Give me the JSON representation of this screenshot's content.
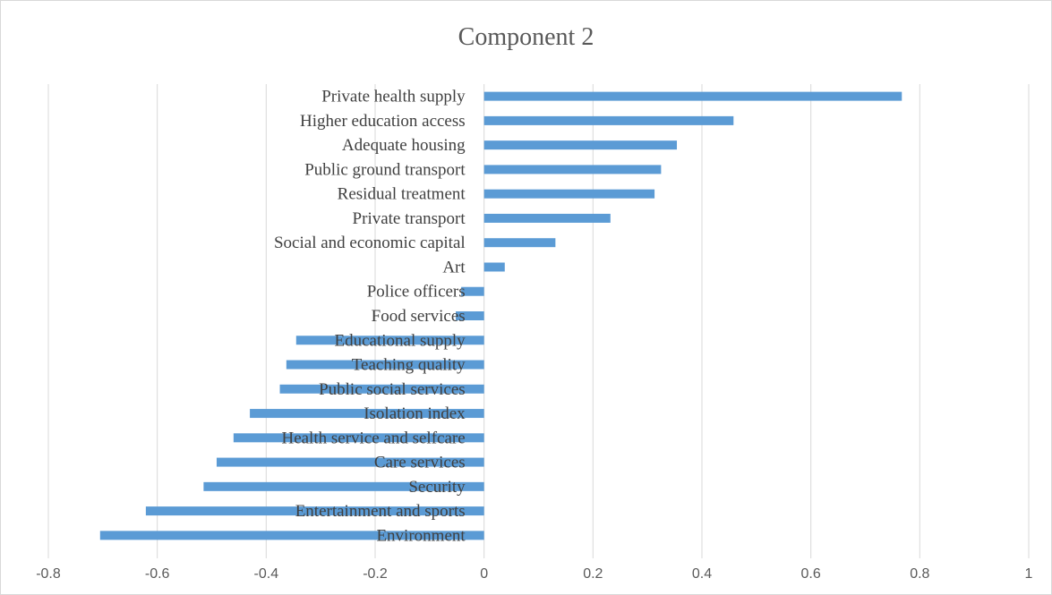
{
  "chart_data": {
    "type": "bar",
    "orientation": "horizontal",
    "title": "Component 2",
    "xlabel": "",
    "ylabel": "",
    "xlim": [
      -0.8,
      1
    ],
    "x_ticks": [
      "-0.8",
      "-0.6",
      "-0.4",
      "-0.2",
      "0",
      "0.2",
      "0.4",
      "0.6",
      "0.8",
      "1"
    ],
    "grid": "vertical",
    "legend": "none",
    "bar_color": "#5b9bd5",
    "categories": [
      "Private health supply",
      "Higher education access",
      "Adequate housing",
      "Public ground transport",
      "Residual treatment",
      "Private transport",
      "Social and economic capital",
      "Art",
      "Police officers",
      "Food services",
      "Educational supply",
      "Teaching quality",
      "Public social services",
      "Isolation index",
      "Health service and selfcare",
      "Care services",
      "Security",
      "Entertainment and sports",
      "Environment"
    ],
    "values": [
      0.767,
      0.458,
      0.354,
      0.325,
      0.313,
      0.232,
      0.131,
      0.038,
      -0.042,
      -0.052,
      -0.345,
      -0.363,
      -0.375,
      -0.43,
      -0.46,
      -0.491,
      -0.515,
      -0.621,
      -0.705
    ]
  }
}
